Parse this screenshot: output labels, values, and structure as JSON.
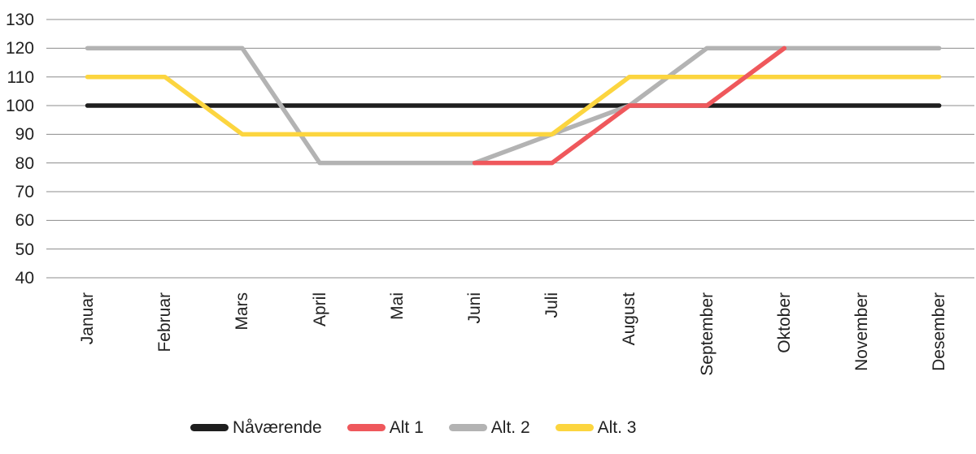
{
  "chart_data": {
    "type": "line",
    "title": "",
    "xlabel": "",
    "ylabel": "",
    "categories": [
      "Januar",
      "Februar",
      "Mars",
      "April",
      "Mai",
      "Juni",
      "Juli",
      "August",
      "September",
      "Oktober",
      "November",
      "Desember"
    ],
    "yticks": [
      130,
      120,
      110,
      100,
      90,
      80,
      70,
      60,
      50,
      40
    ],
    "ylim": [
      40,
      130
    ],
    "grid": "horizontal-only",
    "gridline_color": "#8C8C8C",
    "legend_position": "bottom",
    "series": [
      {
        "name": "Nåværende",
        "color": "#1E1E1E",
        "values": [
          100,
          100,
          100,
          100,
          100,
          100,
          100,
          100,
          100,
          100,
          100,
          100
        ]
      },
      {
        "name": "Alt 1",
        "color": "#EF585C",
        "values": [
          null,
          null,
          null,
          null,
          null,
          80,
          80,
          100,
          100,
          120,
          null,
          null
        ]
      },
      {
        "name": "Alt. 2",
        "color": "#B3B3B3",
        "values": [
          120,
          120,
          120,
          80,
          80,
          80,
          90,
          100,
          120,
          120,
          120,
          120
        ]
      },
      {
        "name": "Alt. 3",
        "color": "#FCD53F",
        "values": [
          110,
          110,
          90,
          90,
          90,
          90,
          90,
          110,
          110,
          110,
          110,
          110
        ]
      }
    ]
  }
}
